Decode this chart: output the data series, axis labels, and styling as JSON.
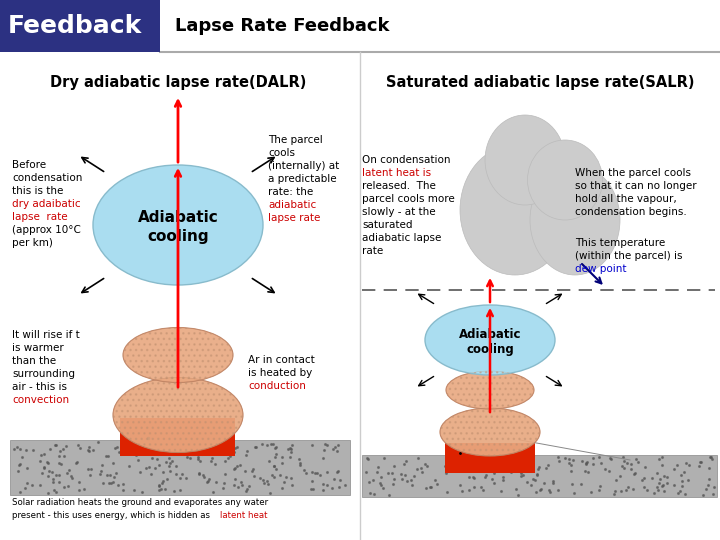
{
  "title": "Lapse Rate Feedback",
  "header_label": "Feedback",
  "header_bg": "#2c3182",
  "header_text_color": "#ffffff",
  "left_title": "Dry adiabatic lapse rate(DALR)",
  "right_title": "Saturated adiabatic lapse rate(SALR)",
  "bg_color": "#ffffff",
  "divider_color": "#aaaaaa"
}
